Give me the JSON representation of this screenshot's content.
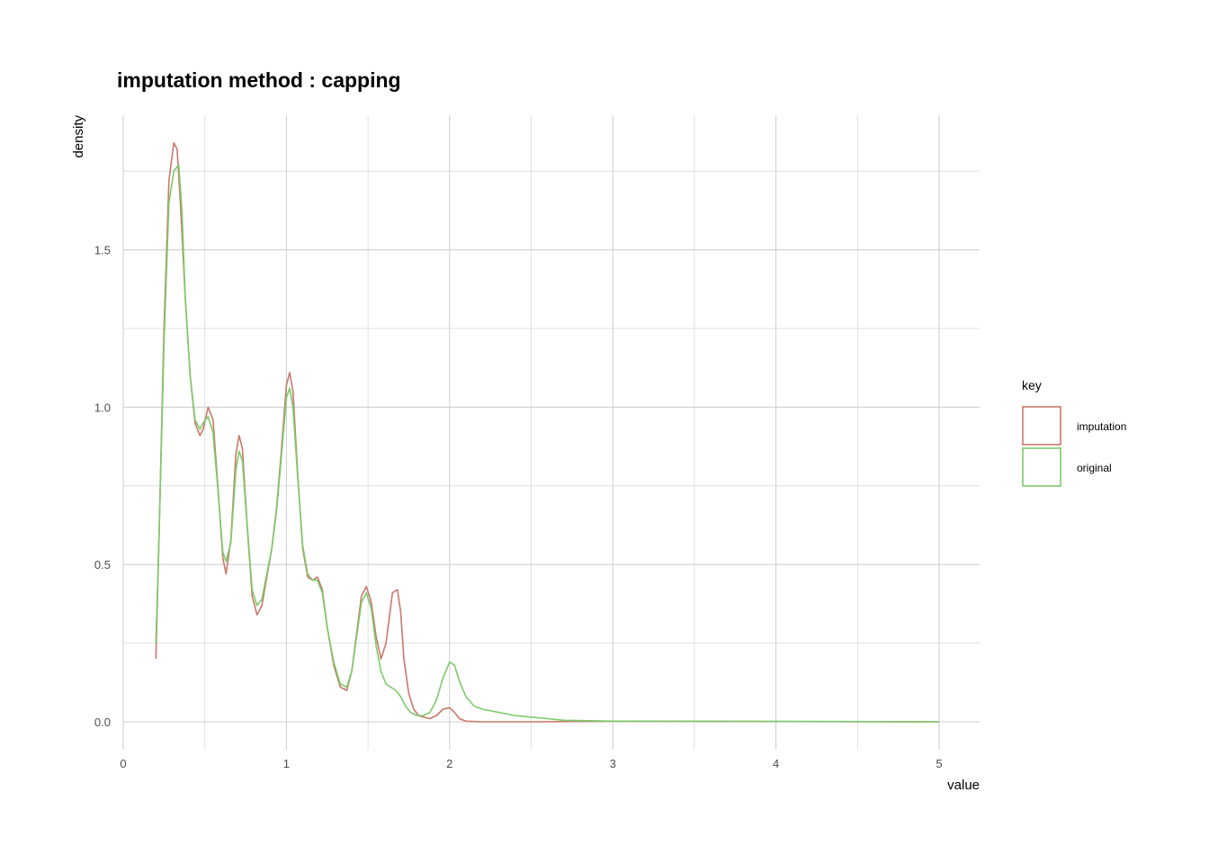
{
  "chart_data": {
    "type": "line",
    "title": "imputation method : capping",
    "xlabel": "value",
    "ylabel": "density",
    "xlim": [
      0,
      5
    ],
    "ylim": [
      0,
      1.85
    ],
    "x_ticks": [
      0,
      1,
      2,
      3,
      4,
      5
    ],
    "x_tick_labels": [
      "0",
      "1",
      "2",
      "3",
      "4",
      "5"
    ],
    "y_ticks": [
      0,
      0.5,
      1,
      1.5
    ],
    "y_tick_labels": [
      "0.0",
      "0.5",
      "1.0",
      "1.5"
    ],
    "grid": true,
    "legend": {
      "title": "key",
      "position": "right"
    },
    "series": [
      {
        "name": "imputation",
        "color": "#c8796c",
        "x": [
          0.2,
          0.22,
          0.25,
          0.28,
          0.31,
          0.33,
          0.35,
          0.38,
          0.41,
          0.44,
          0.47,
          0.49,
          0.52,
          0.55,
          0.58,
          0.61,
          0.63,
          0.66,
          0.69,
          0.71,
          0.73,
          0.76,
          0.79,
          0.82,
          0.85,
          0.88,
          0.91,
          0.94,
          0.97,
          1.0,
          1.02,
          1.04,
          1.07,
          1.1,
          1.13,
          1.16,
          1.19,
          1.22,
          1.25,
          1.29,
          1.33,
          1.37,
          1.4,
          1.43,
          1.46,
          1.49,
          1.52,
          1.55,
          1.58,
          1.61,
          1.63,
          1.65,
          1.68,
          1.7,
          1.72,
          1.75,
          1.78,
          1.81,
          1.84,
          1.88,
          1.92,
          1.96,
          2.0,
          2.03,
          2.06,
          2.1,
          2.2,
          2.5,
          3.0,
          5.0
        ],
        "y": [
          0.2,
          0.6,
          1.25,
          1.72,
          1.84,
          1.82,
          1.65,
          1.35,
          1.1,
          0.95,
          0.91,
          0.93,
          1.0,
          0.96,
          0.75,
          0.52,
          0.47,
          0.58,
          0.85,
          0.91,
          0.87,
          0.62,
          0.4,
          0.34,
          0.37,
          0.46,
          0.55,
          0.68,
          0.87,
          1.07,
          1.11,
          1.05,
          0.78,
          0.55,
          0.46,
          0.45,
          0.46,
          0.42,
          0.3,
          0.18,
          0.11,
          0.1,
          0.16,
          0.28,
          0.4,
          0.43,
          0.38,
          0.27,
          0.2,
          0.25,
          0.33,
          0.41,
          0.42,
          0.35,
          0.2,
          0.09,
          0.04,
          0.02,
          0.015,
          0.01,
          0.02,
          0.04,
          0.045,
          0.03,
          0.01,
          0.002,
          0.0,
          0.0,
          0.002,
          0.0
        ]
      },
      {
        "name": "original",
        "color": "#7dca6a",
        "x": [
          0.2,
          0.22,
          0.25,
          0.28,
          0.31,
          0.34,
          0.36,
          0.38,
          0.41,
          0.44,
          0.47,
          0.49,
          0.52,
          0.55,
          0.58,
          0.61,
          0.63,
          0.66,
          0.69,
          0.71,
          0.73,
          0.76,
          0.79,
          0.82,
          0.85,
          0.88,
          0.91,
          0.94,
          0.97,
          1.0,
          1.02,
          1.04,
          1.07,
          1.1,
          1.13,
          1.16,
          1.19,
          1.22,
          1.25,
          1.29,
          1.33,
          1.37,
          1.4,
          1.43,
          1.46,
          1.49,
          1.52,
          1.55,
          1.58,
          1.61,
          1.64,
          1.67,
          1.7,
          1.73,
          1.76,
          1.8,
          1.84,
          1.88,
          1.92,
          1.96,
          2.0,
          2.03,
          2.06,
          2.1,
          2.15,
          2.2,
          2.3,
          2.4,
          2.5,
          2.6,
          2.7,
          3.0,
          5.0
        ],
        "y": [
          0.25,
          0.6,
          1.2,
          1.65,
          1.75,
          1.77,
          1.62,
          1.35,
          1.1,
          0.96,
          0.93,
          0.95,
          0.97,
          0.92,
          0.74,
          0.54,
          0.51,
          0.57,
          0.8,
          0.86,
          0.83,
          0.62,
          0.42,
          0.37,
          0.39,
          0.47,
          0.55,
          0.67,
          0.85,
          1.03,
          1.06,
          1.0,
          0.77,
          0.56,
          0.47,
          0.45,
          0.45,
          0.41,
          0.3,
          0.19,
          0.12,
          0.11,
          0.16,
          0.27,
          0.38,
          0.41,
          0.36,
          0.24,
          0.16,
          0.12,
          0.11,
          0.1,
          0.08,
          0.05,
          0.03,
          0.02,
          0.02,
          0.03,
          0.07,
          0.14,
          0.19,
          0.18,
          0.13,
          0.08,
          0.05,
          0.04,
          0.03,
          0.02,
          0.015,
          0.01,
          0.005,
          0.002,
          0.0
        ]
      }
    ]
  }
}
